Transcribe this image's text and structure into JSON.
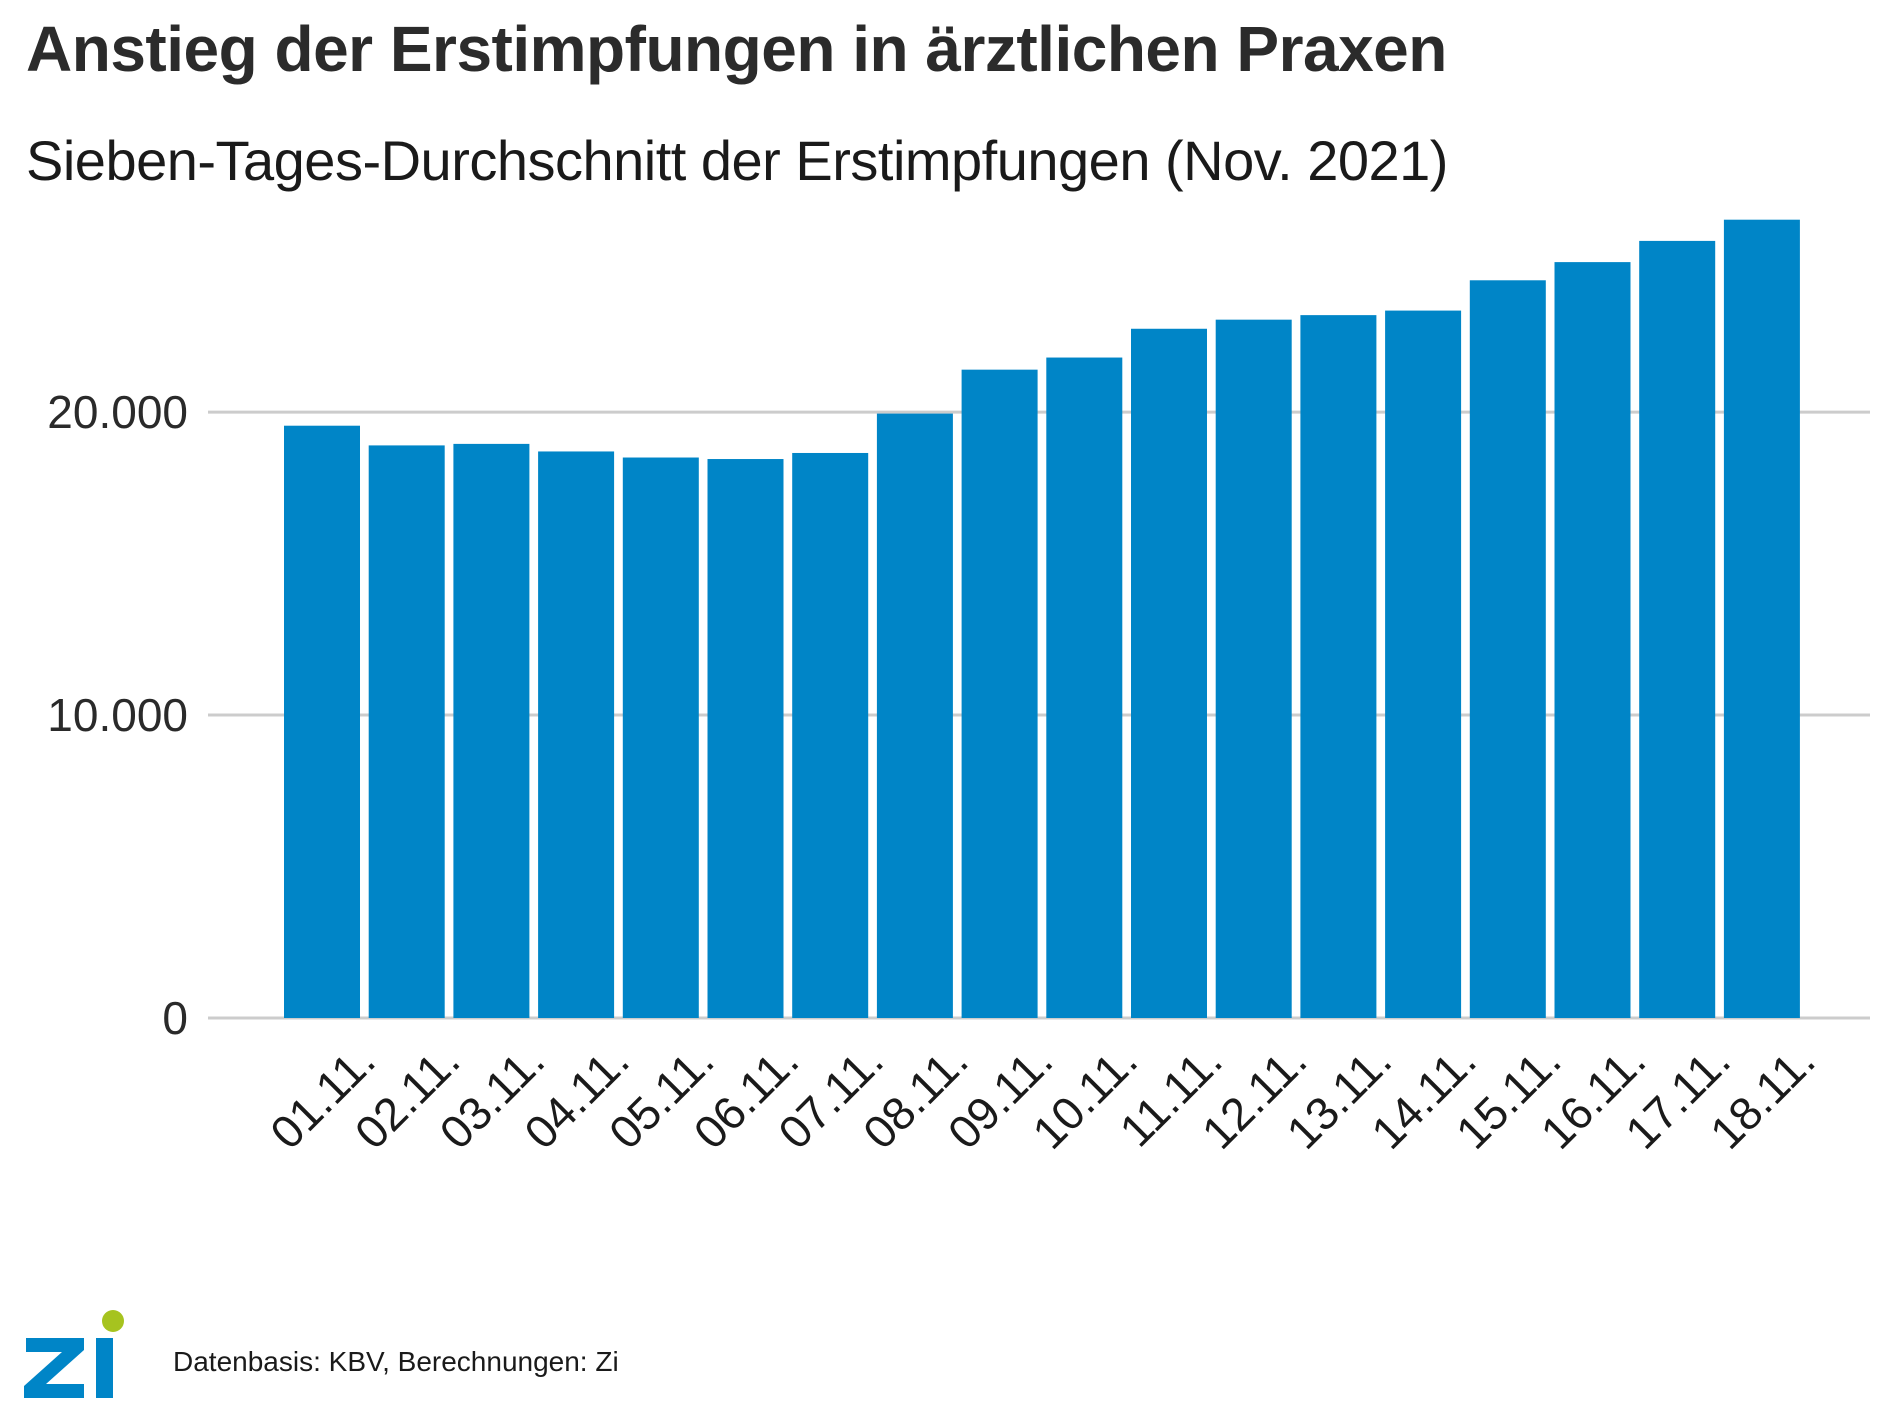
{
  "title": "Anstieg der Erstimpfungen in ärztlichen Praxen",
  "subtitle": "Sieben-Tages-Durchschnitt der Erstimpfungen (Nov. 2021)",
  "source": "Datenbasis: KBV, Berechnungen: Zi",
  "logo": {
    "text_z": "Z",
    "text_i": "i",
    "color_blue": "#0085c7",
    "color_green": "#a6c31f"
  },
  "colors": {
    "bar": "#0085c7",
    "grid": "#cccccc"
  },
  "chart_data": {
    "type": "bar",
    "title": "Anstieg der Erstimpfungen in ärztlichen Praxen",
    "subtitle": "Sieben-Tages-Durchschnitt der Erstimpfungen (Nov. 2021)",
    "xlabel": "",
    "ylabel": "",
    "categories": [
      "01.11.",
      "02.11.",
      "03.11.",
      "04.11.",
      "05.11.",
      "06.11.",
      "07.11.",
      "08.11.",
      "09.11.",
      "10.11.",
      "11.11.",
      "12.11.",
      "13.11.",
      "14.11.",
      "15.11.",
      "16.11.",
      "17.11.",
      "18.11."
    ],
    "values": [
      19550,
      18900,
      18950,
      18700,
      18500,
      18450,
      18650,
      19950,
      21400,
      21800,
      22750,
      23050,
      23200,
      23350,
      24350,
      24950,
      25650,
      26350
    ],
    "ylim": [
      0,
      27000
    ],
    "yticks": [
      0,
      10000,
      20000
    ],
    "ytick_labels": [
      "0",
      "10.000",
      "20.000"
    ],
    "grid": true,
    "legend": "none"
  }
}
